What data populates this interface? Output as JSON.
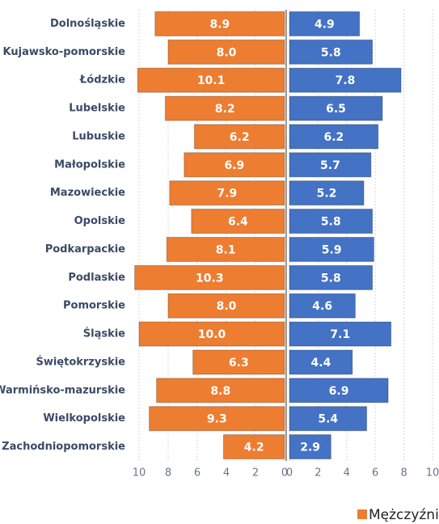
{
  "chart_data": {
    "type": "butterfly-bar",
    "categories": [
      "Dolnośląskie",
      "Kujawsko-pomorskie",
      "Łódzkie",
      "Lubelskie",
      "Lubuskie",
      "Małopolskie",
      "Mazowieckie",
      "Opolskie",
      "Podkarpackie",
      "Podlaskie",
      "Pomorskie",
      "Śląskie",
      "Świętokrzyskie",
      "Warmińsko-mazurskie",
      "Wielkopolskie",
      "Zachodniopomorskie"
    ],
    "series": [
      {
        "name": "Mężczyźni",
        "color": "#ed7d31",
        "side": "left",
        "values": [
          8.9,
          8.0,
          10.1,
          8.2,
          6.2,
          6.9,
          7.9,
          6.4,
          8.1,
          10.3,
          8.0,
          10.0,
          6.3,
          8.8,
          9.3,
          4.2
        ],
        "value_labels": [
          "8.9",
          "8.0",
          "10.1",
          "8.2",
          "6.2",
          "6.9",
          "7.9",
          "6.4",
          "8.1",
          "10.3",
          "8.0",
          "10.0",
          "6.3",
          "8.8",
          "9.3",
          "4.2"
        ]
      },
      {
        "color": "#4472c4",
        "side": "right",
        "values": [
          4.9,
          5.8,
          7.8,
          6.5,
          6.2,
          5.7,
          5.2,
          5.8,
          5.9,
          5.8,
          4.6,
          7.1,
          4.4,
          6.9,
          5.4,
          2.9
        ],
        "value_labels": [
          "4.9",
          "5.8",
          "7.8",
          "6.5",
          "6.2",
          "5.7",
          "5.2",
          "5.8",
          "5.9",
          "5.8",
          "4.6",
          "7.1",
          "4.4",
          "6.9",
          "5.4",
          "2.9"
        ]
      }
    ],
    "xlim": [
      0,
      10
    ],
    "xticks": [
      0,
      2,
      4,
      6,
      8,
      10
    ],
    "grid": true,
    "legend": "bottom-right"
  }
}
